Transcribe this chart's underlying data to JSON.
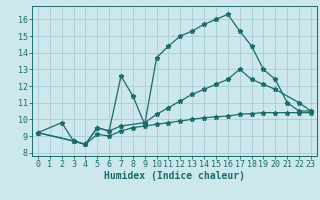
{
  "background_color": "#cde8ed",
  "grid_color": "#afd0d6",
  "line_color": "#1a6b6b",
  "marker_style": "*",
  "marker_size": 3.5,
  "line_width": 0.9,
  "xlabel": "Humidex (Indice chaleur)",
  "xlabel_fontsize": 7,
  "tick_fontsize": 6,
  "xlim": [
    -0.5,
    23.5
  ],
  "ylim": [
    7.8,
    16.8
  ],
  "yticks": [
    8,
    9,
    10,
    11,
    12,
    13,
    14,
    15,
    16
  ],
  "xticks": [
    0,
    1,
    2,
    3,
    4,
    5,
    6,
    7,
    8,
    9,
    10,
    11,
    12,
    13,
    14,
    15,
    16,
    17,
    18,
    19,
    20,
    21,
    22,
    23
  ],
  "line1_x": [
    0,
    2,
    3,
    4,
    5,
    6,
    7,
    8,
    9,
    10,
    11,
    12,
    13,
    14,
    15,
    16,
    17,
    18,
    19,
    20,
    21,
    22,
    23
  ],
  "line1_y": [
    9.2,
    9.8,
    8.7,
    8.5,
    9.5,
    9.3,
    12.6,
    11.4,
    9.7,
    13.7,
    14.4,
    15.0,
    15.3,
    15.7,
    16.0,
    16.3,
    15.3,
    14.4,
    13.0,
    12.4,
    11.0,
    10.5,
    10.5
  ],
  "line2_x": [
    0,
    3,
    4,
    5,
    6,
    7,
    9,
    10,
    11,
    12,
    13,
    14,
    15,
    16,
    17,
    18,
    19,
    20,
    22,
    23
  ],
  "line2_y": [
    9.2,
    8.7,
    8.5,
    9.5,
    9.3,
    9.6,
    9.8,
    10.3,
    10.7,
    11.1,
    11.5,
    11.8,
    12.1,
    12.4,
    13.0,
    12.4,
    12.1,
    11.8,
    11.0,
    10.5
  ],
  "line3_x": [
    0,
    3,
    4,
    5,
    6,
    7,
    8,
    9,
    10,
    11,
    12,
    13,
    14,
    15,
    16,
    17,
    18,
    19,
    20,
    21,
    22,
    23
  ],
  "line3_y": [
    9.2,
    8.7,
    8.5,
    9.1,
    9.0,
    9.3,
    9.5,
    9.6,
    9.7,
    9.8,
    9.9,
    10.0,
    10.1,
    10.15,
    10.2,
    10.3,
    10.35,
    10.4,
    10.4,
    10.4,
    10.4,
    10.4
  ]
}
